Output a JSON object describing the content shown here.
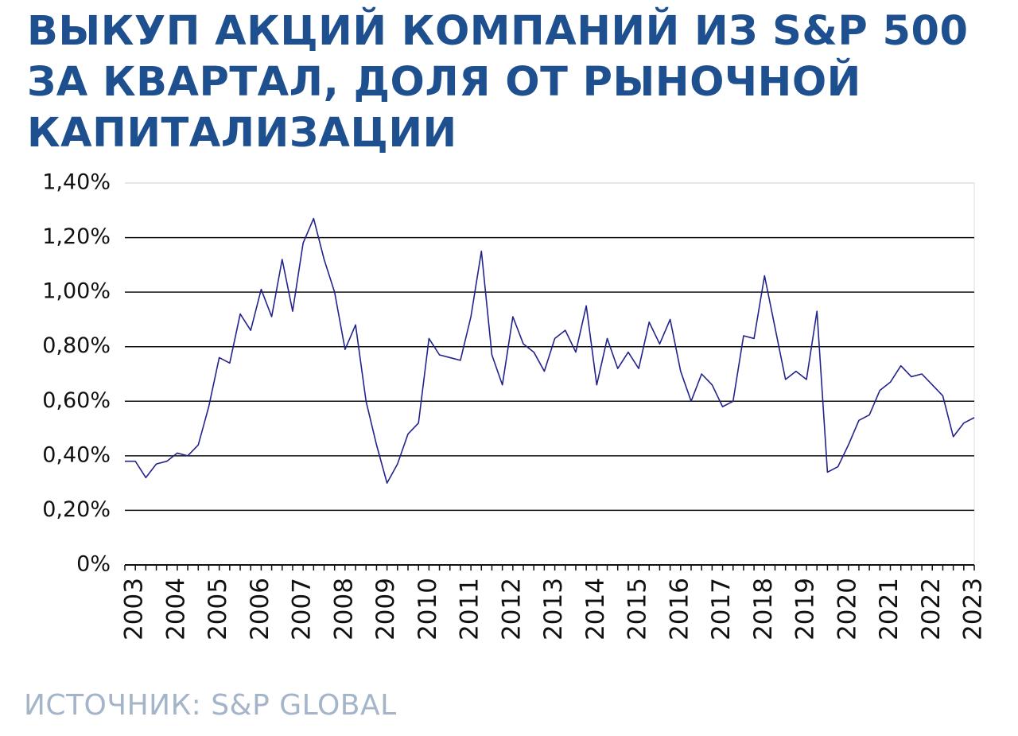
{
  "chart_data": {
    "type": "line",
    "title": "ВЫКУП АКЦИЙ КОМПАНИЙ ИЗ S&P 500 ЗА КВАРТАЛ, ДОЛЯ ОТ РЫНОЧНОЙ КАПИТАЛИЗАЦИИ",
    "source": "ИСТОЧНИК: S&P GLOBAL",
    "categories": [
      null,
      "2003",
      null,
      null,
      null,
      "2004",
      null,
      null,
      null,
      "2005",
      null,
      null,
      null,
      "2006",
      null,
      null,
      null,
      "2007",
      null,
      null,
      null,
      "2008",
      null,
      null,
      null,
      "2009",
      null,
      null,
      null,
      "2010",
      null,
      null,
      null,
      "2011",
      null,
      null,
      null,
      "2012",
      null,
      null,
      null,
      "2013",
      null,
      null,
      null,
      "2014",
      null,
      null,
      null,
      "2015",
      null,
      null,
      null,
      "2016",
      null,
      null,
      null,
      "2017",
      null,
      null,
      null,
      "2018",
      null,
      null,
      null,
      "2019",
      null,
      null,
      null,
      "2020",
      null,
      null,
      null,
      "2021",
      null,
      null,
      null,
      "2022",
      null,
      null,
      null,
      "2023"
    ],
    "series": [
      {
        "color": "#23238c",
        "values": [
          0.38,
          0.38,
          0.32,
          0.37,
          0.38,
          0.41,
          0.4,
          0.44,
          0.58,
          0.76,
          0.74,
          0.92,
          0.86,
          1.01,
          0.91,
          1.12,
          0.93,
          1.18,
          1.27,
          1.12,
          1.0,
          0.79,
          0.88,
          0.6,
          0.44,
          0.3,
          0.37,
          0.48,
          0.52,
          0.83,
          0.77,
          0.76,
          0.75,
          0.91,
          1.15,
          0.77,
          0.66,
          0.91,
          0.81,
          0.78,
          0.71,
          0.83,
          0.86,
          0.78,
          0.95,
          0.66,
          0.83,
          0.72,
          0.78,
          0.72,
          0.89,
          0.81,
          0.9,
          0.71,
          0.6,
          0.7,
          0.66,
          0.58,
          0.6,
          0.84,
          0.83,
          1.06,
          0.87,
          0.68,
          0.71,
          0.68,
          0.93,
          0.34,
          0.36,
          0.44,
          0.53,
          0.55,
          0.64,
          0.67,
          0.73,
          0.69,
          0.7,
          0.66,
          0.62,
          0.47,
          0.52,
          0.54
        ]
      }
    ],
    "ylim": [
      0,
      1.4
    ],
    "yticks": [
      {
        "value": 0,
        "label": "0%"
      },
      {
        "value": 0.2,
        "label": "0,20%"
      },
      {
        "value": 0.4,
        "label": "0,40%"
      },
      {
        "value": 0.6,
        "label": "0,60%"
      },
      {
        "value": 0.8,
        "label": "0,80%"
      },
      {
        "value": 1.0,
        "label": "1,00%"
      },
      {
        "value": 1.2,
        "label": "1,20%"
      },
      {
        "value": 1.4,
        "label": "1,40%"
      }
    ],
    "grid": true
  }
}
